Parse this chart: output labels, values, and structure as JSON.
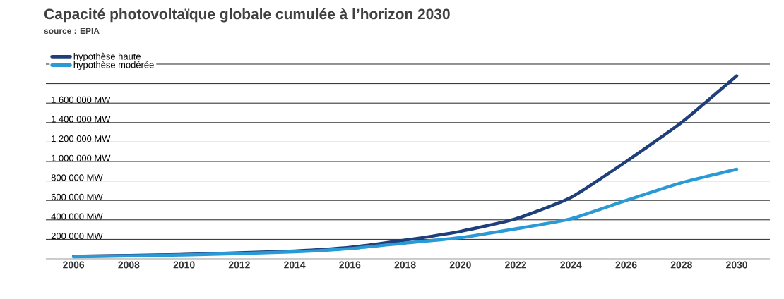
{
  "chart_data": {
    "type": "line",
    "title": "Capacité photovoltaïque globale cumulée à l’horizon 2030",
    "subtitle": "source : EPIA",
    "x": [
      2006,
      2008,
      2010,
      2012,
      2014,
      2016,
      2018,
      2020,
      2022,
      2024,
      2026,
      2028,
      2030
    ],
    "series": [
      {
        "name": "hypothèse haute",
        "color": "#1f3f7a",
        "values": [
          25000,
          35000,
          45000,
          62000,
          80000,
          118000,
          192000,
          282000,
          410000,
          630000,
          1000000,
          1400000,
          1880000
        ]
      },
      {
        "name": "hypothèse modérée",
        "color": "#2a9ad6",
        "values": [
          22000,
          30000,
          40000,
          55000,
          72000,
          105000,
          162000,
          218000,
          308000,
          410000,
          600000,
          782000,
          920000
        ]
      }
    ],
    "xlim": [
      2005,
      2031.2
    ],
    "xticks": [
      2006,
      2008,
      2010,
      2012,
      2014,
      2016,
      2018,
      2020,
      2022,
      2024,
      2026,
      2028,
      2030
    ],
    "ylim": [
      0,
      2000000
    ],
    "yticks": [
      {
        "value": 200000,
        "label": "200 000 MW"
      },
      {
        "value": 400000,
        "label": "400 000 MW"
      },
      {
        "value": 600000,
        "label": "600 000 MW"
      },
      {
        "value": 800000,
        "label": "800 000 MW"
      },
      {
        "value": 1000000,
        "label": "1 000 000 MW"
      },
      {
        "value": 1200000,
        "label": "1 200 000 MW"
      },
      {
        "value": 1400000,
        "label": "1 400 000 MW"
      },
      {
        "value": 1600000,
        "label": "1 600 000 MW"
      },
      {
        "value": 1800000,
        "label": null
      },
      {
        "value": 2000000,
        "label": null
      }
    ],
    "grid": "y",
    "legend": "top left",
    "marker": "none",
    "line_style": "solid"
  }
}
